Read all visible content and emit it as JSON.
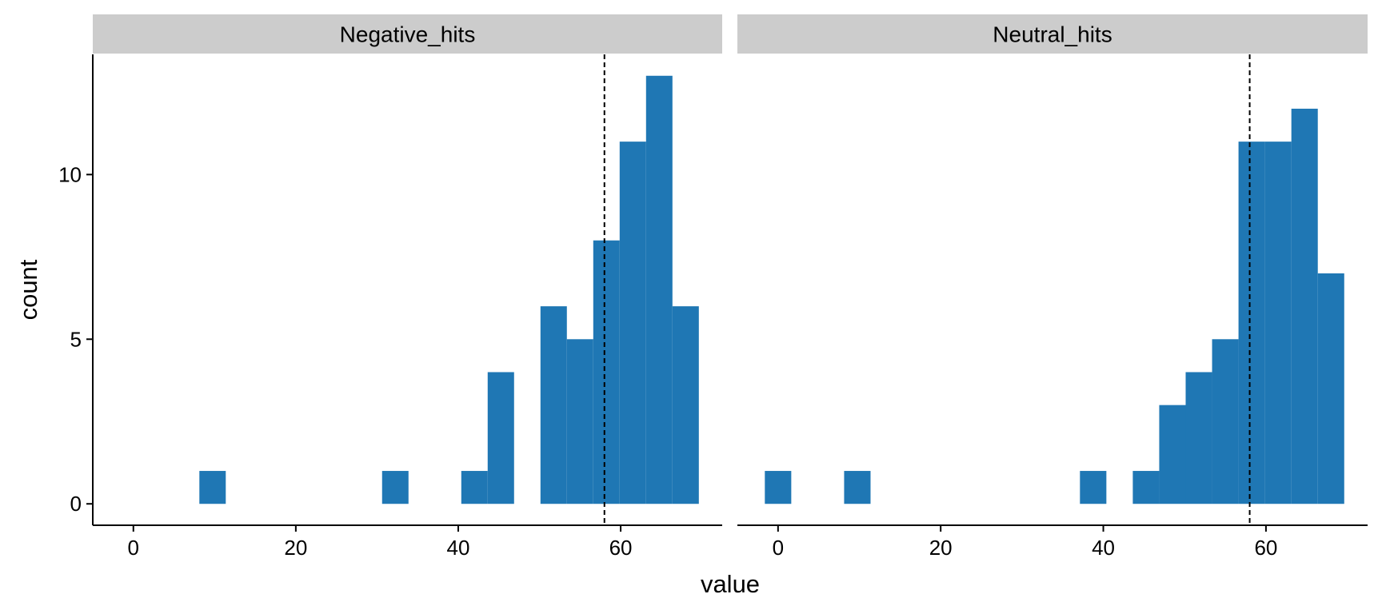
{
  "chart_data": {
    "type": "bar",
    "subtype": "faceted-histogram",
    "xlabel": "value",
    "ylabel": "count",
    "bar_color": "#1F77B4",
    "strip_color": "#CCCCCC",
    "vline_color": "#000000",
    "xlim": [
      -5,
      72.5
    ],
    "ylim": [
      -0.65,
      13.65
    ],
    "xticks": [
      0,
      20,
      40,
      60
    ],
    "yticks": [
      0,
      5,
      10
    ],
    "grid": false,
    "facets": [
      {
        "name": "Negative_hits",
        "reference_line": 58,
        "bins": [
          {
            "x": 9.75,
            "count": 1
          },
          {
            "x": 32.25,
            "count": 1
          },
          {
            "x": 42.0,
            "count": 1
          },
          {
            "x": 45.25,
            "count": 4
          },
          {
            "x": 51.75,
            "count": 6
          },
          {
            "x": 55.0,
            "count": 5
          },
          {
            "x": 58.25,
            "count": 8
          },
          {
            "x": 61.5,
            "count": 11
          },
          {
            "x": 64.75,
            "count": 13
          },
          {
            "x": 68.0,
            "count": 6
          }
        ]
      },
      {
        "name": "Neutral_hits",
        "reference_line": 58,
        "bins": [
          {
            "x": 0.0,
            "count": 1
          },
          {
            "x": 9.75,
            "count": 1
          },
          {
            "x": 38.75,
            "count": 1
          },
          {
            "x": 45.25,
            "count": 1
          },
          {
            "x": 48.5,
            "count": 3
          },
          {
            "x": 51.75,
            "count": 4
          },
          {
            "x": 55.0,
            "count": 5
          },
          {
            "x": 58.25,
            "count": 11
          },
          {
            "x": 61.5,
            "count": 11
          },
          {
            "x": 64.75,
            "count": 12
          },
          {
            "x": 68.0,
            "count": 7
          }
        ]
      }
    ]
  }
}
